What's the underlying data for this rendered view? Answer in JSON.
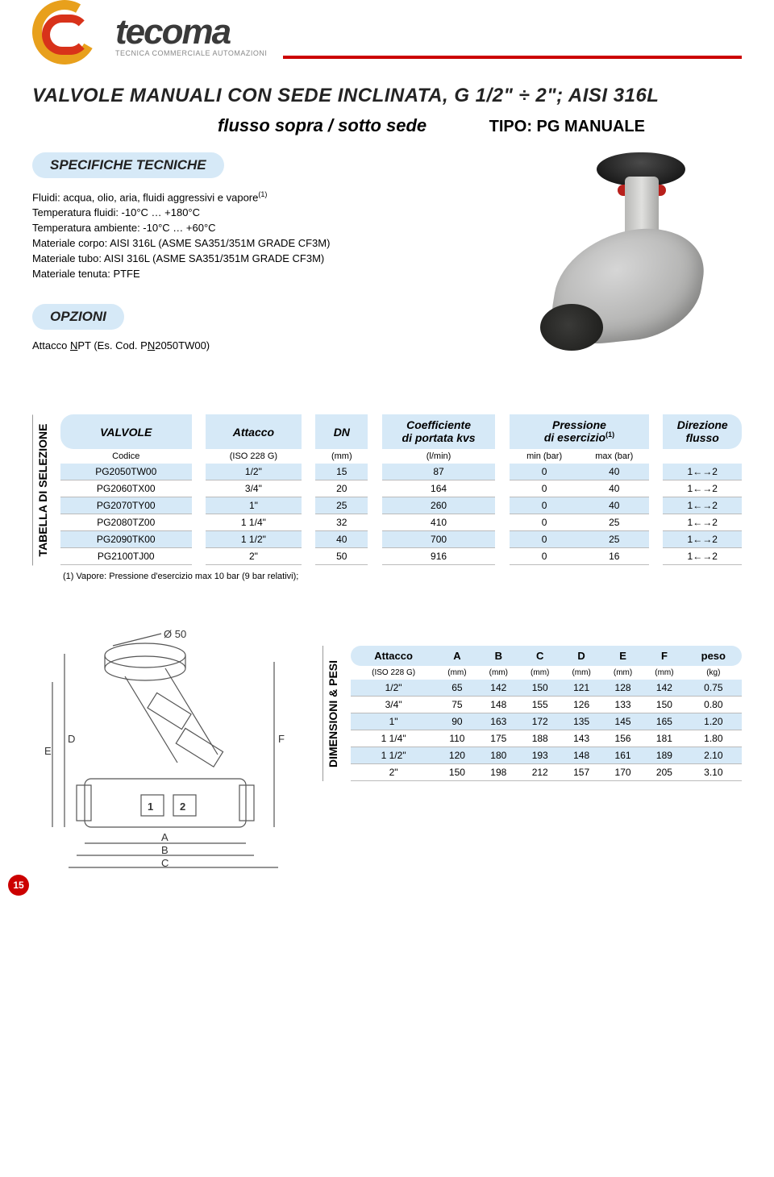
{
  "brand": {
    "name": "tecoma",
    "tagline": "TECNICA COMMERCIALE AUTOMAZIONI",
    "accent_red": "#c00000",
    "pill_bg": "#d6e9f7"
  },
  "title": "VALVOLE MANUALI CON SEDE INCLINATA, G 1/2\" ÷ 2\"; AISI 316L",
  "subtitle_left": "flusso sopra / sotto sede",
  "subtitle_right": "TIPO: PG MANUALE",
  "spec_header": "SPECIFICHE TECNICHE",
  "specs": [
    "Fluidi: acqua, olio, aria, fluidi aggressivi e vapore",
    "Temperatura fluidi: -10°C … +180°C",
    "Temperatura ambiente: -10°C … +60°C",
    "Materiale corpo: AISI 316L (ASME SA351/351M GRADE CF3M)",
    "Materiale tubo: AISI 316L (ASME SA351/351M GRADE CF3M)",
    "Materiale tenuta: PTFE"
  ],
  "spec_sup": "(1)",
  "options_header": "OPZIONI",
  "options_text": "Attacco NPT (Es. Cod. PN2050TW00)",
  "sel_label": "TABELLA  DI  SELEZIONE",
  "sel_headers": {
    "c1": "VALVOLE",
    "c2": "Attacco",
    "c3": "DN",
    "c4a": "Coefficiente",
    "c4b": "di portata kvs",
    "c5a": "Pressione",
    "c5b": "di esercizio",
    "c5sup": "(1)",
    "c6a": "Direzione",
    "c6b": "flusso"
  },
  "sel_units": {
    "c1": "Codice",
    "c2": "(ISO 228 G)",
    "c3": "(mm)",
    "c4": "(l/min)",
    "c5a": "min (bar)",
    "c5b": "max (bar)"
  },
  "sel_rows": [
    {
      "code": "PG2050TW00",
      "att": "1/2\"",
      "dn": "15",
      "kvs": "87",
      "pmin": "0",
      "pmax": "40",
      "dir": "1←→2"
    },
    {
      "code": "PG2060TX00",
      "att": "3/4\"",
      "dn": "20",
      "kvs": "164",
      "pmin": "0",
      "pmax": "40",
      "dir": "1←→2"
    },
    {
      "code": "PG2070TY00",
      "att": "1\"",
      "dn": "25",
      "kvs": "260",
      "pmin": "0",
      "pmax": "40",
      "dir": "1←→2"
    },
    {
      "code": "PG2080TZ00",
      "att": "1 1/4\"",
      "dn": "32",
      "kvs": "410",
      "pmin": "0",
      "pmax": "25",
      "dir": "1←→2"
    },
    {
      "code": "PG2090TK00",
      "att": "1 1/2\"",
      "dn": "40",
      "kvs": "700",
      "pmin": "0",
      "pmax": "25",
      "dir": "1←→2"
    },
    {
      "code": "PG2100TJ00",
      "att": "2\"",
      "dn": "50",
      "kvs": "916",
      "pmin": "0",
      "pmax": "16",
      "dir": "1←→2"
    }
  ],
  "sel_footnote": "(1) Vapore: Pressione d'esercizio max 10 bar (9 bar relativi);",
  "dim_label": "DIMENSIONI & PESI",
  "dim_headers": [
    "Attacco",
    "A",
    "B",
    "C",
    "D",
    "E",
    "F",
    "peso"
  ],
  "dim_units": [
    "(ISO 228 G)",
    "(mm)",
    "(mm)",
    "(mm)",
    "(mm)",
    "(mm)",
    "(mm)",
    "(kg)"
  ],
  "dim_rows": [
    [
      "1/2\"",
      "65",
      "142",
      "150",
      "121",
      "128",
      "142",
      "0.75"
    ],
    [
      "3/4\"",
      "75",
      "148",
      "155",
      "126",
      "133",
      "150",
      "0.80"
    ],
    [
      "1\"",
      "90",
      "163",
      "172",
      "135",
      "145",
      "165",
      "1.20"
    ],
    [
      "1 1/4\"",
      "110",
      "175",
      "188",
      "143",
      "156",
      "181",
      "1.80"
    ],
    [
      "1 1/2\"",
      "120",
      "180",
      "193",
      "148",
      "161",
      "189",
      "2.10"
    ],
    [
      "2\"",
      "150",
      "198",
      "212",
      "157",
      "170",
      "205",
      "3.10"
    ]
  ],
  "drawing_labels": {
    "d50": "Ø 50",
    "E": "E",
    "D": "D",
    "F": "F",
    "A": "A",
    "B": "B",
    "C": "C",
    "one": "1",
    "two": "2"
  },
  "page_number": "15"
}
